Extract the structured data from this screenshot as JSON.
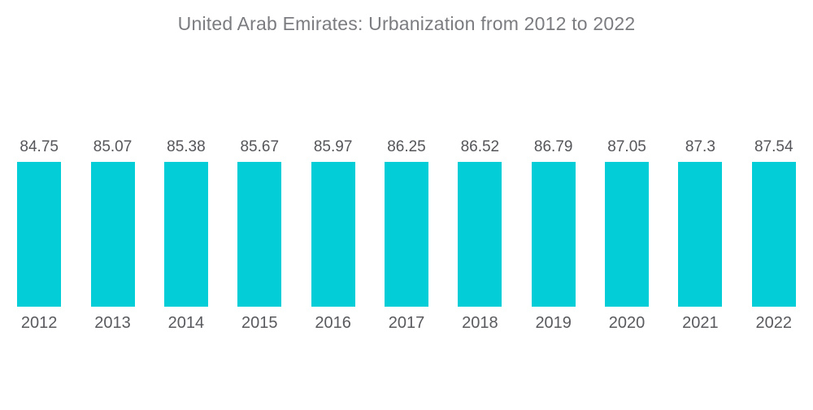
{
  "chart_data": {
    "type": "bar",
    "title": "United Arab Emirates: Urbanization from 2012 to 2022",
    "xlabel": "",
    "ylabel": "",
    "categories": [
      "2012",
      "2013",
      "2014",
      "2015",
      "2016",
      "2017",
      "2018",
      "2019",
      "2020",
      "2021",
      "2022"
    ],
    "values": [
      84.75,
      85.07,
      85.38,
      85.67,
      85.97,
      86.25,
      86.52,
      86.79,
      87.05,
      87.3,
      87.54
    ],
    "value_labels": [
      "84.75",
      "85.07",
      "85.38",
      "85.67",
      "85.97",
      "86.25",
      "86.52",
      "86.79",
      "87.05",
      "87.3",
      "87.54"
    ],
    "ylim": [
      0,
      87.54
    ],
    "grid": false,
    "legend": false,
    "colors": {
      "bar": "#03cdd6",
      "value_label": "#55565a",
      "axis_label": "#595a5e",
      "title": "#7b7c80",
      "background": "#ffffff"
    }
  }
}
